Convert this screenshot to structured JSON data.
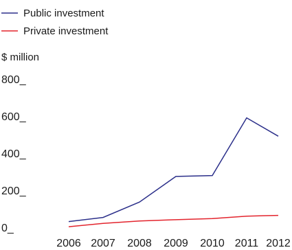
{
  "colors": {
    "public": "#2b2f8a",
    "private": "#e3232c",
    "text": "#1a1a1a"
  },
  "chart_data": {
    "type": "line",
    "title": "",
    "xlabel": "",
    "ylabel": "$ million",
    "x": [
      "2006",
      "2007",
      "2008",
      "2009",
      "2010",
      "2011",
      "2012"
    ],
    "ylim": [
      0,
      800
    ],
    "yticks": [
      "0_",
      "200_",
      "400_",
      "600_",
      "800_"
    ],
    "grid": false,
    "legend_position": "top-left",
    "series": [
      {
        "name": "Public investment",
        "color": "#2b2f8a",
        "values": [
          35,
          57,
          140,
          278,
          283,
          594,
          495
        ]
      },
      {
        "name": "Private investment",
        "color": "#e3232c",
        "values": [
          7,
          25,
          38,
          45,
          51,
          64,
          68
        ]
      }
    ]
  }
}
